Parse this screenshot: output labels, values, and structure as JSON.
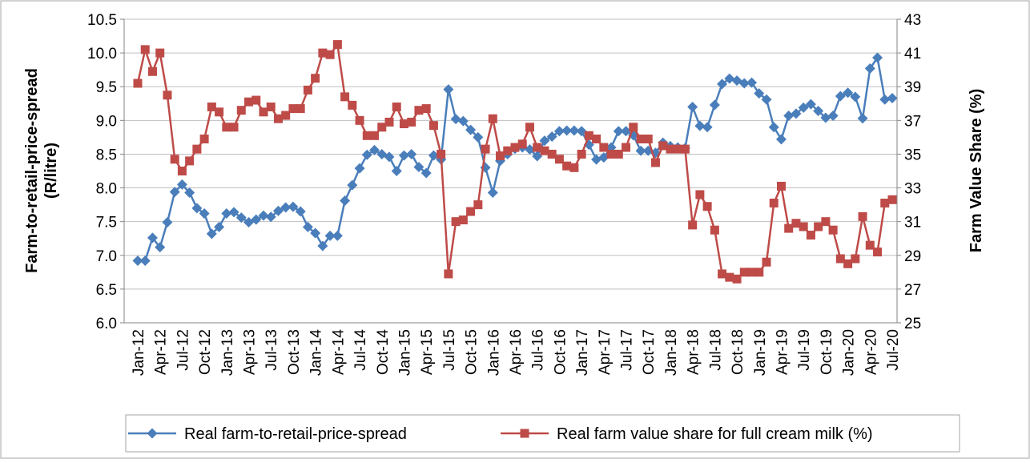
{
  "chart_data": {
    "type": "line",
    "y_label": [
      "Farm-to-retail-price-spread",
      "(R/litre)"
    ],
    "y2_label": "Farm Value Share (%)",
    "categories": [
      "Jan-12",
      null,
      null,
      "Apr-12",
      null,
      null,
      "Jul-12",
      null,
      null,
      "Oct-12",
      null,
      null,
      "Jan-13",
      null,
      null,
      "Apr-13",
      null,
      null,
      "Jul-13",
      null,
      null,
      "Oct-13",
      null,
      null,
      "Jan-14",
      null,
      null,
      "Apr-14",
      null,
      null,
      "Jul-14",
      null,
      null,
      "Oct-14",
      null,
      null,
      "Jan-15",
      null,
      null,
      "Apr-15",
      null,
      null,
      "Jul-15",
      null,
      null,
      "Oct-15",
      null,
      null,
      "Jan-16",
      null,
      null,
      "Apr-16",
      null,
      null,
      "Jul-16",
      null,
      null,
      "Oct-16",
      null,
      null,
      "Jan-17",
      null,
      null,
      "Apr-17",
      null,
      null,
      "Jul-17",
      null,
      null,
      "Oct-17",
      null,
      null,
      "Jan-18",
      null,
      null,
      "Apr-18",
      null,
      null,
      "Jul-18",
      null,
      null,
      "Oct-18",
      null,
      null,
      "Jan-19",
      null,
      null,
      "Apr-19",
      null,
      null,
      "Jul-19",
      null,
      null,
      "Oct-19",
      null,
      null,
      "Jan-20",
      null,
      null,
      "Apr-20",
      null,
      null,
      "Jul-20"
    ],
    "series": [
      {
        "name": "Real farm-to-retail-price-spread",
        "color": "#4a7ebb",
        "marker": "diamond",
        "axis": "y",
        "values": [
          6.92,
          6.92,
          7.26,
          7.12,
          7.49,
          7.94,
          8.05,
          7.93,
          7.7,
          7.62,
          7.32,
          7.42,
          7.62,
          7.64,
          7.56,
          7.49,
          7.53,
          7.59,
          7.57,
          7.66,
          7.71,
          7.72,
          7.65,
          7.42,
          7.33,
          7.14,
          7.29,
          7.29,
          7.81,
          8.04,
          8.29,
          8.49,
          8.56,
          8.5,
          8.46,
          8.25,
          8.48,
          8.5,
          8.31,
          8.22,
          8.48,
          8.42,
          9.46,
          9.02,
          8.99,
          8.86,
          8.75,
          8.3,
          7.93,
          8.4,
          8.5,
          8.58,
          8.6,
          8.57,
          8.47,
          8.7,
          8.76,
          8.84,
          8.85,
          8.85,
          8.84,
          8.64,
          8.42,
          8.45,
          8.6,
          8.84,
          8.84,
          8.78,
          8.55,
          8.55,
          8.52,
          8.67,
          8.62,
          8.6,
          8.59,
          9.2,
          8.92,
          8.9,
          9.23,
          9.54,
          9.62,
          9.59,
          9.55,
          9.56,
          9.4,
          9.31,
          8.9,
          8.72,
          9.07,
          9.1,
          9.19,
          9.24,
          9.14,
          9.04,
          9.07,
          9.36,
          9.41,
          9.35,
          9.03,
          9.77,
          9.93,
          9.31,
          9.33
        ]
      },
      {
        "name": "Real farm value share for full cream milk (%)",
        "color": "#be4b48",
        "marker": "square",
        "axis": "y2",
        "values": [
          39.2,
          41.2,
          39.9,
          41.0,
          38.5,
          34.7,
          34.0,
          34.6,
          35.3,
          35.9,
          37.8,
          37.5,
          36.6,
          36.6,
          37.6,
          38.1,
          38.2,
          37.5,
          37.8,
          37.1,
          37.3,
          37.7,
          37.7,
          38.8,
          39.5,
          41.0,
          40.9,
          41.5,
          38.4,
          37.9,
          37.0,
          36.1,
          36.1,
          36.6,
          36.9,
          37.8,
          36.8,
          36.9,
          37.6,
          37.7,
          36.7,
          35.0,
          27.9,
          31.0,
          31.1,
          31.6,
          32.0,
          35.3,
          37.1,
          34.9,
          35.2,
          35.4,
          35.6,
          36.6,
          35.4,
          35.2,
          35.0,
          34.7,
          34.3,
          34.2,
          35.0,
          36.1,
          35.9,
          35.4,
          35.0,
          35.0,
          35.4,
          36.6,
          35.9,
          35.9,
          34.5,
          35.5,
          35.3,
          35.3,
          35.3,
          30.8,
          32.6,
          31.9,
          30.5,
          27.9,
          27.7,
          27.6,
          28.0,
          28.0,
          28.0,
          28.6,
          32.1,
          33.1,
          30.6,
          30.9,
          30.7,
          30.2,
          30.7,
          31.0,
          30.5,
          28.8,
          28.5,
          28.8,
          31.3,
          29.6,
          29.2,
          32.1,
          32.3
        ]
      }
    ],
    "ylim": [
      6,
      10.5
    ],
    "yticks": [
      {
        "value": 6,
        "label": "6.0"
      },
      6.5,
      {
        "value": 7,
        "label": "7.0"
      },
      7.5,
      {
        "value": 8,
        "label": "8.0"
      },
      8.5,
      {
        "value": 9,
        "label": "9.0"
      },
      9.5,
      {
        "value": 10,
        "label": "10.0"
      },
      10.5
    ],
    "y2lim": [
      25,
      43
    ],
    "y2ticks": [
      25,
      27,
      29,
      31,
      33,
      35,
      37,
      39,
      41,
      43
    ],
    "grid": true,
    "legend": "bottom"
  }
}
